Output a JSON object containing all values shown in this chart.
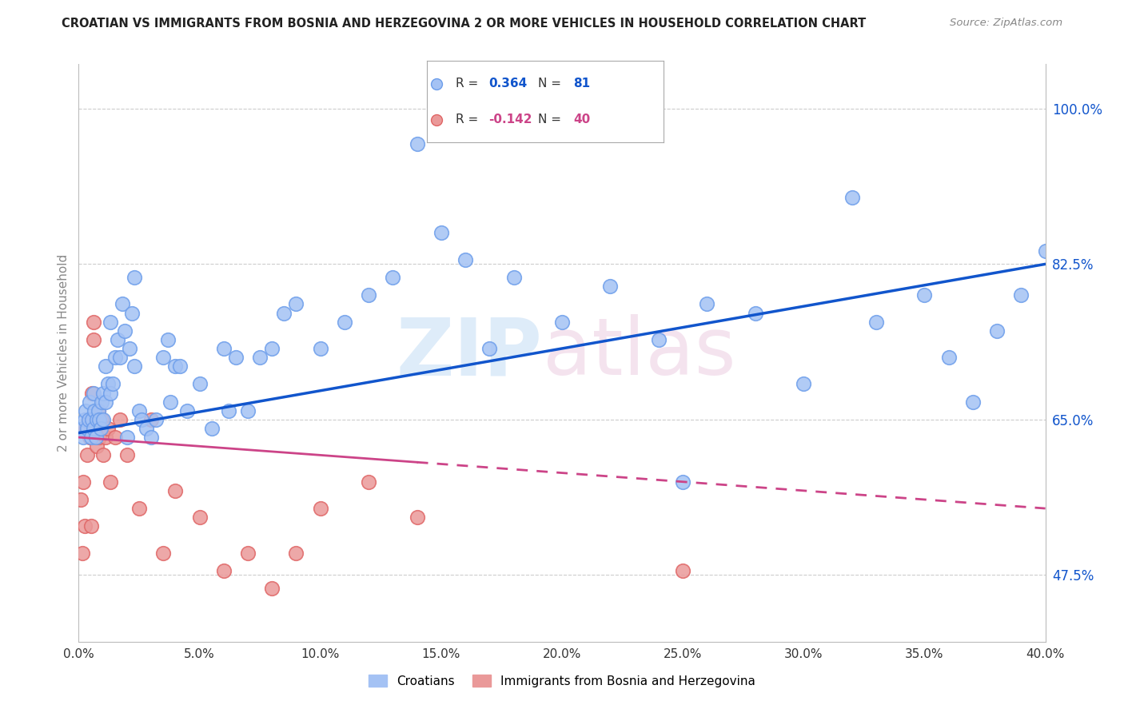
{
  "title": "CROATIAN VS IMMIGRANTS FROM BOSNIA AND HERZEGOVINA 2 OR MORE VEHICLES IN HOUSEHOLD CORRELATION CHART",
  "source": "Source: ZipAtlas.com",
  "ylabel": "2 or more Vehicles in Household",
  "blue_R": 0.364,
  "blue_N": 81,
  "pink_R": -0.142,
  "pink_N": 40,
  "legend_croatians": "Croatians",
  "legend_immigrants": "Immigrants from Bosnia and Herzegovina",
  "xmin": 0.0,
  "xmax": 40.0,
  "ymin": 40.0,
  "ymax": 105.0,
  "right_ytick_vals": [
    47.5,
    65.0,
    82.5,
    100.0
  ],
  "background_color": "#ffffff",
  "blue_color": "#a4c2f4",
  "blue_edge": "#6d9eeb",
  "pink_color": "#ea9999",
  "pink_edge": "#e06666",
  "blue_line_color": "#1155cc",
  "pink_line_color": "#cc4488",
  "watermark_zip": "ZIP",
  "watermark_atlas": "atlas",
  "blue_trendline_x0": 0.0,
  "blue_trendline_y0": 63.5,
  "blue_trendline_x1": 40.0,
  "blue_trendline_y1": 82.5,
  "pink_trendline_x0": 0.0,
  "pink_trendline_y0": 63.0,
  "pink_trendline_x1": 40.0,
  "pink_trendline_y1": 55.0,
  "pink_solid_end": 14.0,
  "blue_points_x": [
    0.15,
    0.2,
    0.25,
    0.3,
    0.35,
    0.4,
    0.45,
    0.5,
    0.55,
    0.6,
    0.6,
    0.65,
    0.7,
    0.75,
    0.8,
    0.85,
    0.9,
    0.95,
    1.0,
    1.0,
    1.1,
    1.1,
    1.2,
    1.3,
    1.4,
    1.5,
    1.6,
    1.7,
    1.8,
    1.9,
    2.0,
    2.1,
    2.2,
    2.3,
    2.5,
    2.6,
    2.8,
    3.0,
    3.2,
    3.5,
    3.8,
    4.0,
    4.5,
    5.0,
    5.5,
    6.0,
    6.5,
    7.0,
    7.5,
    8.0,
    8.5,
    9.0,
    10.0,
    11.0,
    12.0,
    13.0,
    14.0,
    15.0,
    16.0,
    17.0,
    18.0,
    20.0,
    22.0,
    24.0,
    25.0,
    26.0,
    28.0,
    30.0,
    32.0,
    33.0,
    35.0,
    36.0,
    37.0,
    38.0,
    39.0,
    40.0,
    2.3,
    3.7,
    6.2,
    4.2,
    1.3
  ],
  "blue_points_y": [
    64.0,
    63.0,
    65.0,
    66.0,
    64.0,
    65.0,
    67.0,
    63.0,
    65.0,
    64.0,
    68.0,
    66.0,
    63.0,
    65.0,
    66.0,
    65.0,
    64.0,
    67.0,
    65.0,
    68.0,
    67.0,
    71.0,
    69.0,
    68.0,
    69.0,
    72.0,
    74.0,
    72.0,
    78.0,
    75.0,
    63.0,
    73.0,
    77.0,
    71.0,
    66.0,
    65.0,
    64.0,
    63.0,
    65.0,
    72.0,
    67.0,
    71.0,
    66.0,
    69.0,
    64.0,
    73.0,
    72.0,
    66.0,
    72.0,
    73.0,
    77.0,
    78.0,
    73.0,
    76.0,
    79.0,
    81.0,
    96.0,
    86.0,
    83.0,
    73.0,
    81.0,
    76.0,
    80.0,
    74.0,
    58.0,
    78.0,
    77.0,
    69.0,
    90.0,
    76.0,
    79.0,
    72.0,
    67.0,
    75.0,
    79.0,
    84.0,
    81.0,
    74.0,
    66.0,
    71.0,
    76.0
  ],
  "pink_points_x": [
    0.1,
    0.15,
    0.2,
    0.25,
    0.3,
    0.35,
    0.4,
    0.45,
    0.5,
    0.55,
    0.6,
    0.65,
    0.7,
    0.75,
    0.8,
    0.85,
    0.9,
    0.95,
    1.0,
    1.1,
    1.2,
    1.3,
    1.5,
    1.7,
    2.0,
    2.5,
    3.0,
    3.5,
    4.0,
    5.0,
    6.0,
    7.0,
    8.0,
    9.0,
    10.0,
    12.0,
    14.0,
    25.0,
    0.6,
    0.5
  ],
  "pink_points_y": [
    56.0,
    50.0,
    58.0,
    53.0,
    64.0,
    61.0,
    65.0,
    63.0,
    64.0,
    68.0,
    74.0,
    65.0,
    64.0,
    62.0,
    66.0,
    63.0,
    64.0,
    65.0,
    61.0,
    63.0,
    64.0,
    58.0,
    63.0,
    65.0,
    61.0,
    55.0,
    65.0,
    50.0,
    57.0,
    54.0,
    48.0,
    50.0,
    46.0,
    50.0,
    55.0,
    58.0,
    54.0,
    48.0,
    76.0,
    53.0
  ]
}
